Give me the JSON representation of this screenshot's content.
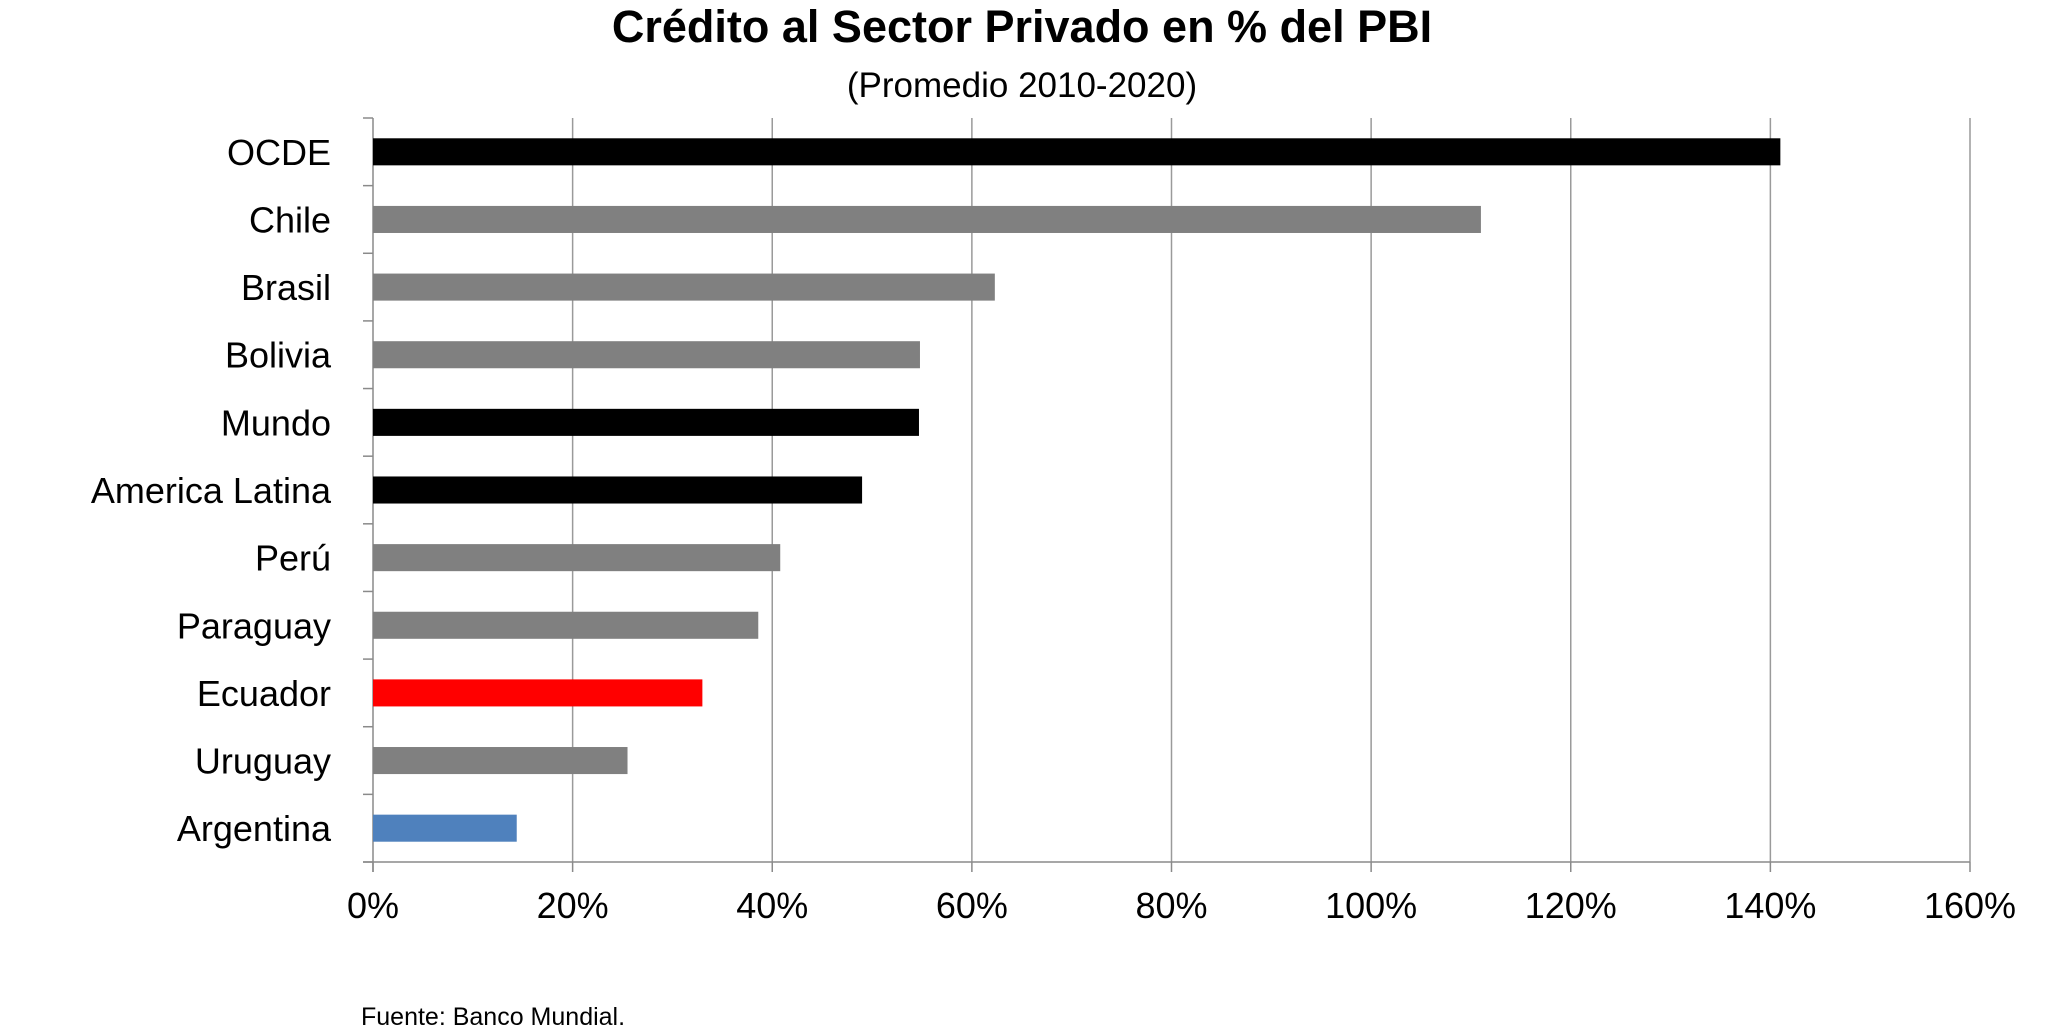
{
  "chart_data": {
    "type": "bar",
    "orientation": "horizontal",
    "title": "Crédito al Sector Privado en % del PBI",
    "subtitle": "(Promedio 2010-2020)",
    "source": "Fuente: Banco Mundial.",
    "xlabel": "",
    "ylabel": "",
    "xlim": [
      0,
      160
    ],
    "ticks": [
      0,
      20,
      40,
      60,
      80,
      100,
      120,
      140,
      160
    ],
    "tick_labels": [
      "0%",
      "20%",
      "40%",
      "60%",
      "80%",
      "100%",
      "120%",
      "140%",
      "160%"
    ],
    "grid": "vertical",
    "legend": "none",
    "categories": [
      "OCDE",
      "Chile",
      "Brasil",
      "Bolivia",
      "Mundo",
      "America Latina",
      "Perú",
      "Paraguay",
      "Ecuador",
      "Uruguay",
      "Argentina"
    ],
    "values": [
      141,
      111,
      62.3,
      54.8,
      54.7,
      49,
      40.8,
      38.6,
      33,
      25.5,
      14.4
    ],
    "colors": [
      "#000000",
      "#808080",
      "#808080",
      "#808080",
      "#000000",
      "#000000",
      "#808080",
      "#808080",
      "#ff0000",
      "#808080",
      "#4f81bd"
    ]
  }
}
